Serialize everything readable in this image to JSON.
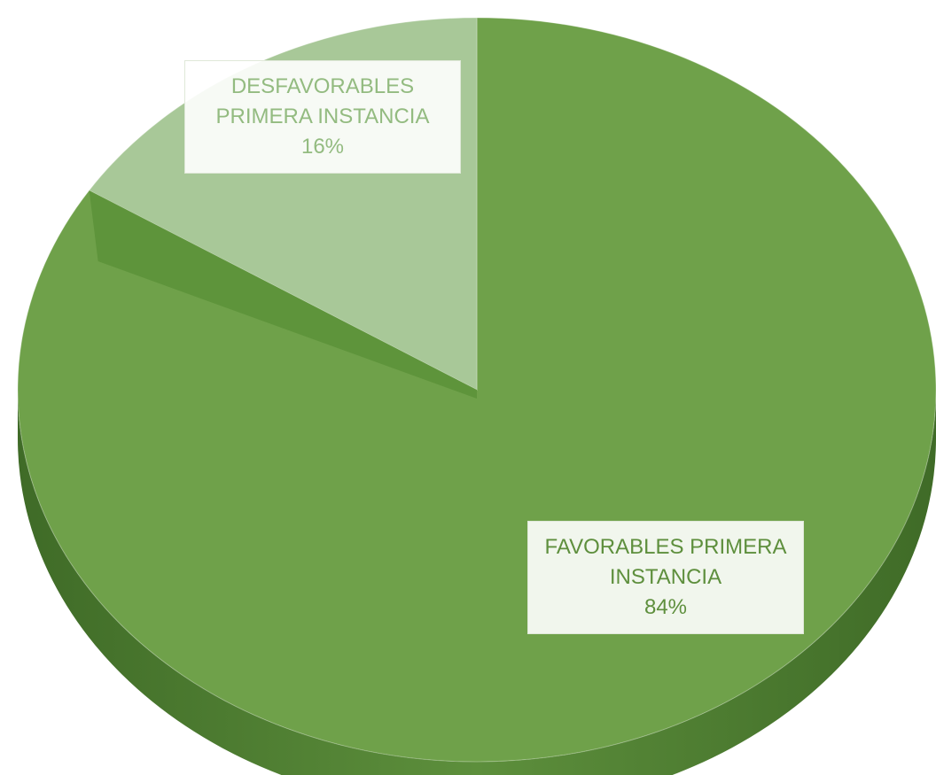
{
  "chart_data": {
    "type": "pie",
    "categories": [
      "FAVORABLES PRIMERA INSTANCIA",
      "DESFAVORABLES PRIMERA INSTANCIA"
    ],
    "values": [
      84,
      16
    ],
    "value_labels": [
      "84%",
      "16%"
    ],
    "colors": [
      "#6fa14a",
      "#a8c898"
    ],
    "label_colors": [
      "#5e8f3d",
      "#93bb80"
    ]
  }
}
